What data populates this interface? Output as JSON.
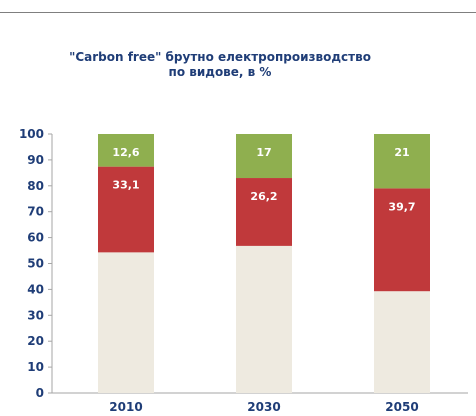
{
  "chart_data": {
    "type": "bar",
    "stacked": true,
    "title": "\"Carbon free\" брутно електропроизводство по видове, в %",
    "categories": [
      "2010",
      "2030",
      "2050"
    ],
    "ylim": [
      0,
      100
    ],
    "yticks": [
      0,
      10,
      20,
      30,
      40,
      50,
      60,
      70,
      80,
      90,
      100
    ],
    "series": [
      {
        "values": [
          54.3,
          56.8,
          39.3
        ],
        "color": "#eeeae0"
      },
      {
        "values": [
          33.1,
          26.2,
          39.7
        ],
        "color": "#c0393b",
        "labels": [
          "33,1",
          "26,2",
          "39,7"
        ]
      },
      {
        "values": [
          12.6,
          17,
          21
        ],
        "color": "#8faf4f",
        "labels": [
          "12,6",
          "17",
          "21"
        ]
      }
    ],
    "legend": "none",
    "grid": false
  }
}
